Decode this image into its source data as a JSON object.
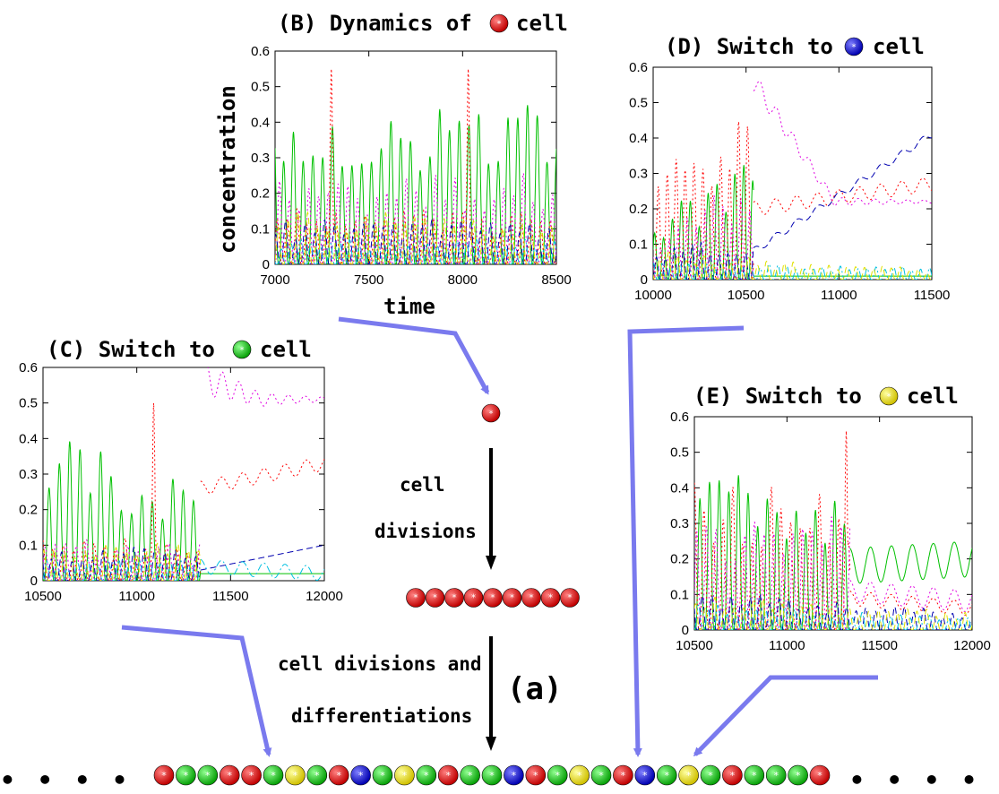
{
  "colors": {
    "red_cell": "#e00000",
    "green_cell": "#10c010",
    "blue_cell": "#1010d0",
    "yellow_cell": "#e8e800",
    "series_green": "#00c000",
    "series_red": "#ff0000",
    "series_magenta": "#e000e0",
    "series_blue": "#0000b0",
    "series_cyan": "#00c0e0",
    "series_yellow": "#e0e000",
    "arrow_blue": "#7a7aee"
  },
  "chart_data": [
    {
      "id": "B",
      "type": "line",
      "title": {
        "prefix": "(B) Dynamics of",
        "cell": "red",
        "suffix": "cell"
      },
      "xlabel": "time",
      "ylabel": "concentration",
      "xlim": [
        7000,
        8500
      ],
      "ylim": [
        0,
        0.6
      ],
      "xticks": [
        "7000",
        "7500",
        "8000",
        "8500"
      ],
      "yticks": [
        "0",
        "0.1",
        "0.2",
        "0.3",
        "0.4",
        "0.5",
        "0.6"
      ],
      "series": [
        {
          "color": "green",
          "dash": "solid",
          "kind": "osc",
          "x": [
            7000,
            8500
          ],
          "amp": [
            0.44,
            0.46
          ],
          "period": 52,
          "phase": 0
        },
        {
          "color": "red",
          "dash": "dot",
          "kind": "osc",
          "x": [
            7000,
            8500
          ],
          "amp": [
            0.16,
            0.16
          ],
          "period": 52,
          "phase": 18,
          "spikes": [
            [
              7300,
              0.55
            ],
            [
              8030,
              0.55
            ]
          ]
        },
        {
          "color": "magenta",
          "dash": "dot",
          "kind": "osc",
          "x": [
            7000,
            8500
          ],
          "amp": [
            0.24,
            0.26
          ],
          "period": 52,
          "phase": 30
        },
        {
          "color": "blue",
          "dash": "dash",
          "kind": "osc",
          "x": [
            7000,
            8500
          ],
          "amp": [
            0.13,
            0.12
          ],
          "period": 52,
          "phase": 10
        },
        {
          "color": "cyan",
          "dash": "dashdot",
          "kind": "osc",
          "x": [
            7000,
            8500
          ],
          "amp": [
            0.07,
            0.07
          ],
          "period": 52,
          "phase": 40
        },
        {
          "color": "yellow",
          "dash": "dash",
          "kind": "osc",
          "x": [
            7000,
            8500
          ],
          "amp": [
            0.16,
            0.12
          ],
          "period": 52,
          "phase": 24
        }
      ]
    },
    {
      "id": "C",
      "type": "line",
      "title": {
        "prefix": "(C) Switch to",
        "cell": "green",
        "suffix": "cell"
      },
      "xlabel": "",
      "ylabel": "",
      "xlim": [
        10500,
        12000
      ],
      "ylim": [
        0,
        0.6
      ],
      "xticks": [
        "10500",
        "11000",
        "11500",
        "12000"
      ],
      "yticks": [
        "0",
        "0.1",
        "0.2",
        "0.3",
        "0.4",
        "0.5",
        "0.6"
      ],
      "series": [
        {
          "color": "green",
          "dash": "solid",
          "kind": "osc",
          "x": [
            10500,
            11340
          ],
          "amp": [
            0.42,
            0.28
          ],
          "period": 55,
          "phase": 0
        },
        {
          "color": "green",
          "dash": "solid",
          "kind": "flat",
          "x": [
            11340,
            12000
          ],
          "y": [
            0.02,
            0.02
          ]
        },
        {
          "color": "red",
          "dash": "dot",
          "kind": "osc",
          "x": [
            10500,
            11340
          ],
          "amp": [
            0.12,
            0.12
          ],
          "period": 55,
          "phase": 20,
          "spikes": [
            [
              11090,
              0.5
            ]
          ]
        },
        {
          "color": "red",
          "dash": "dot",
          "kind": "flat",
          "x": [
            11340,
            12000
          ],
          "y": [
            0.26,
            0.33
          ],
          "wave": 0.02
        },
        {
          "color": "magenta",
          "dash": "dot",
          "kind": "osc",
          "x": [
            10500,
            11340
          ],
          "amp": [
            0.12,
            0.12
          ],
          "period": 55,
          "phase": 35
        },
        {
          "color": "magenta",
          "dash": "dot",
          "kind": "decay",
          "x": [
            11360,
            12000
          ],
          "y0": 0.57,
          "y1": 0.51,
          "wave": 0.05
        },
        {
          "color": "blue",
          "dash": "dash",
          "kind": "osc",
          "x": [
            10500,
            11340
          ],
          "amp": [
            0.09,
            0.1
          ],
          "period": 55,
          "phase": 12
        },
        {
          "color": "blue",
          "dash": "dash",
          "kind": "flat",
          "x": [
            11340,
            12000
          ],
          "y": [
            0.03,
            0.1
          ]
        },
        {
          "color": "cyan",
          "dash": "dashdot",
          "kind": "osc",
          "x": [
            10500,
            11340
          ],
          "amp": [
            0.06,
            0.06
          ],
          "period": 55,
          "phase": 42
        },
        {
          "color": "cyan",
          "dash": "dashdot",
          "kind": "flat",
          "x": [
            11340,
            12000
          ],
          "y": [
            0.04,
            0.02
          ],
          "wave": 0.02
        },
        {
          "color": "yellow",
          "dash": "dash",
          "kind": "osc",
          "x": [
            10500,
            11340
          ],
          "amp": [
            0.11,
            0.11
          ],
          "period": 55,
          "phase": 27
        }
      ]
    },
    {
      "id": "D",
      "type": "line",
      "title": {
        "prefix": "(D) Switch to",
        "cell": "blue",
        "suffix": "cell"
      },
      "xlabel": "",
      "ylabel": "",
      "xlim": [
        10000,
        11500
      ],
      "ylim": [
        0,
        0.6
      ],
      "xticks": [
        "10000",
        "10500",
        "11000",
        "11500"
      ],
      "yticks": [
        "0",
        "0.1",
        "0.2",
        "0.3",
        "0.4",
        "0.5",
        "0.6"
      ],
      "series": [
        {
          "color": "green",
          "dash": "solid",
          "kind": "osc",
          "x": [
            10000,
            10540
          ],
          "amp": [
            0.2,
            0.34
          ],
          "period": 48,
          "phase": 0
        },
        {
          "color": "green",
          "dash": "solid",
          "kind": "flat",
          "x": [
            10540,
            11500
          ],
          "y": [
            0.01,
            0.01
          ]
        },
        {
          "color": "red",
          "dash": "dot",
          "kind": "osc",
          "x": [
            10000,
            10540
          ],
          "amp": [
            0.34,
            0.52
          ],
          "period": 48,
          "phase": 20
        },
        {
          "color": "red",
          "dash": "dot",
          "kind": "flat",
          "x": [
            10540,
            11500
          ],
          "y": [
            0.2,
            0.27
          ],
          "wave": 0.02
        },
        {
          "color": "magenta",
          "dash": "dot",
          "kind": "osc",
          "x": [
            10000,
            10540
          ],
          "amp": [
            0.15,
            0.3
          ],
          "period": 48,
          "phase": 32
        },
        {
          "color": "magenta",
          "dash": "dot",
          "kind": "decay",
          "x": [
            10540,
            11500
          ],
          "y0": 0.56,
          "y1": 0.22,
          "wave": 0.03
        },
        {
          "color": "blue",
          "dash": "dash",
          "kind": "osc",
          "x": [
            10000,
            10540
          ],
          "amp": [
            0.1,
            0.12
          ],
          "period": 48,
          "phase": 10
        },
        {
          "color": "blue",
          "dash": "dash",
          "kind": "flat",
          "x": [
            10540,
            11500
          ],
          "y": [
            0.08,
            0.41
          ],
          "wave": 0.01
        },
        {
          "color": "cyan",
          "dash": "dashdot",
          "kind": "osc",
          "x": [
            10000,
            11500
          ],
          "amp": [
            0.05,
            0.04
          ],
          "period": 48,
          "phase": 40
        },
        {
          "color": "yellow",
          "dash": "dash",
          "kind": "osc",
          "x": [
            10000,
            11500
          ],
          "amp": [
            0.08,
            0.03
          ],
          "period": 48,
          "phase": 26
        }
      ]
    },
    {
      "id": "E",
      "type": "line",
      "title": {
        "prefix": "(E) Switch to",
        "cell": "yellow",
        "suffix": "cell"
      },
      "xlabel": "",
      "ylabel": "",
      "xlim": [
        10500,
        12000
      ],
      "ylim": [
        0,
        0.6
      ],
      "xticks": [
        "10500",
        "11000",
        "11500",
        "12000"
      ],
      "yticks": [
        "0",
        "0.1",
        "0.2",
        "0.3",
        "0.4",
        "0.5",
        "0.6"
      ],
      "series": [
        {
          "color": "green",
          "dash": "solid",
          "kind": "osc",
          "x": [
            10500,
            11340
          ],
          "amp": [
            0.45,
            0.4
          ],
          "period": 52,
          "phase": 0
        },
        {
          "color": "green",
          "dash": "solid",
          "kind": "flat",
          "x": [
            11340,
            12000
          ],
          "y": [
            0.18,
            0.2
          ],
          "wave": 0.05
        },
        {
          "color": "red",
          "dash": "dot",
          "kind": "osc",
          "x": [
            10500,
            11340
          ],
          "amp": [
            0.44,
            0.4
          ],
          "period": 52,
          "phase": 22,
          "spikes": [
            [
              11320,
              0.56
            ]
          ]
        },
        {
          "color": "red",
          "dash": "dot",
          "kind": "flat",
          "x": [
            11340,
            12000
          ],
          "y": [
            0.09,
            0.06
          ],
          "wave": 0.02
        },
        {
          "color": "magenta",
          "dash": "dot",
          "kind": "osc",
          "x": [
            10500,
            11340
          ],
          "amp": [
            0.3,
            0.4
          ],
          "period": 52,
          "phase": 35
        },
        {
          "color": "magenta",
          "dash": "dot",
          "kind": "flat",
          "x": [
            11340,
            12000
          ],
          "y": [
            0.11,
            0.08
          ],
          "wave": 0.03
        },
        {
          "color": "blue",
          "dash": "dash",
          "kind": "osc",
          "x": [
            10500,
            12000
          ],
          "amp": [
            0.12,
            0.05
          ],
          "period": 52,
          "phase": 12
        },
        {
          "color": "cyan",
          "dash": "dashdot",
          "kind": "osc",
          "x": [
            10500,
            12000
          ],
          "amp": [
            0.08,
            0.04
          ],
          "period": 52,
          "phase": 44
        },
        {
          "color": "yellow",
          "dash": "dash",
          "kind": "osc",
          "x": [
            10500,
            12000
          ],
          "amp": [
            0.1,
            0.05
          ],
          "period": 52,
          "phase": 28
        }
      ]
    }
  ],
  "flow": {
    "step1_line1": "cell",
    "step1_line2": "divisions",
    "step2_line1": "cell divisions and",
    "step2_line2": "differentiations",
    "label": "(a)",
    "row_cells": [
      "red",
      "red",
      "red",
      "red",
      "red",
      "red",
      "red",
      "red",
      "red"
    ],
    "bottom_cells": [
      "red",
      "green",
      "green",
      "red",
      "red",
      "green",
      "yellow",
      "green",
      "red",
      "blue",
      "green",
      "yellow",
      "green",
      "red",
      "green",
      "green",
      "blue",
      "red",
      "green",
      "yellow",
      "green",
      "red",
      "blue",
      "green",
      "yellow",
      "green",
      "red",
      "green",
      "green",
      "green",
      "red"
    ],
    "ellipsis": "• • • •"
  }
}
